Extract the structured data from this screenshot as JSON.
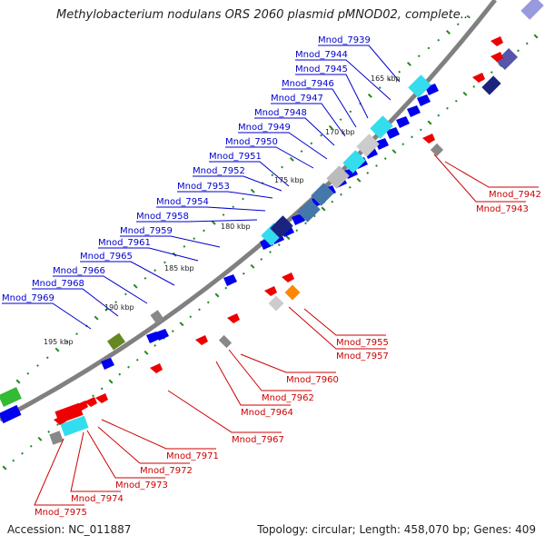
{
  "title": "Methylobacterium nodulans ORS 2060 plasmid pMNOD02, complete...",
  "footer": {
    "accession": "Accession: NC_011887",
    "stats": "Topology: circular; Length: 458,070 bp; Genes: 409"
  },
  "colors": {
    "backbone": "#808080",
    "forward_label": "#0000cc",
    "reverse_label": "#cc0000",
    "forward_gene": "#0000ee",
    "reverse_gene": "#ee0000",
    "gc_dots": "#228822",
    "cyan": "#33ddee",
    "steel": "#4477aa",
    "grey": "#888888",
    "orange": "#ff8800",
    "olive": "#668822",
    "green": "#33bb33",
    "navy": "#1a237e",
    "slate": "#5555aa"
  },
  "kbp_ticks": [
    "165 kbp",
    "170 kbp",
    "175 kbp",
    "180 kbp",
    "185 kbp",
    "190 kbp",
    "195 kbp"
  ],
  "forward_genes": [
    "Mnod_7939",
    "Mnod_7944",
    "Mnod_7945",
    "Mnod_7946",
    "Mnod_7947",
    "Mnod_7948",
    "Mnod_7949",
    "Mnod_7950",
    "Mnod_7951",
    "Mnod_7952",
    "Mnod_7953",
    "Mnod_7954",
    "Mnod_7958",
    "Mnod_7959",
    "Mnod_7961",
    "Mnod_7965",
    "Mnod_7966",
    "Mnod_7968",
    "Mnod_7969"
  ],
  "reverse_genes": [
    "Mnod_7942",
    "Mnod_7943",
    "Mnod_7955",
    "Mnod_7957",
    "Mnod_7960",
    "Mnod_7962",
    "Mnod_7964",
    "Mnod_7967",
    "Mnod_7971",
    "Mnod_7972",
    "Mnod_7973",
    "Mnod_7974",
    "Mnod_7975"
  ]
}
